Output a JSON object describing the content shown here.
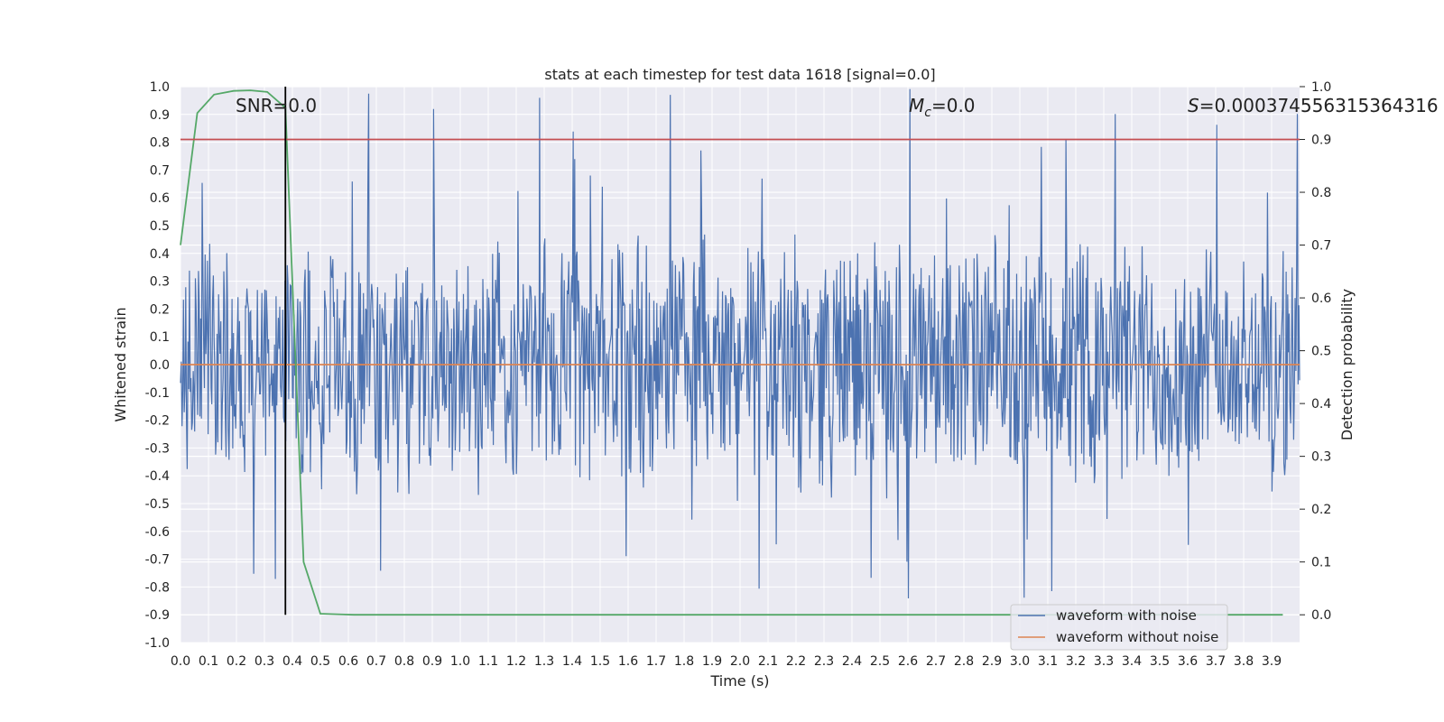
{
  "chart_data": {
    "type": "line",
    "title": "stats at each timestep for test data 1618 [signal=0.0]",
    "xlabel": "Time (s)",
    "ylabel": "Whitened strain",
    "y2label": "Detection probability",
    "xlim": [
      0.0,
      4.0
    ],
    "ylim": [
      -1.0,
      1.0
    ],
    "y2lim": [
      -0.05,
      1.0
    ],
    "x_ticks": [
      "0.0",
      "0.1",
      "0.2",
      "0.3",
      "0.4",
      "0.5",
      "0.6",
      "0.7",
      "0.8",
      "0.9",
      "1.0",
      "1.1",
      "1.2",
      "1.3",
      "1.4",
      "1.5",
      "1.6",
      "1.7",
      "1.8",
      "1.9",
      "2.0",
      "2.1",
      "2.2",
      "2.3",
      "2.4",
      "2.5",
      "2.6",
      "2.7",
      "2.8",
      "2.9",
      "3.0",
      "3.1",
      "3.2",
      "3.3",
      "3.4",
      "3.5",
      "3.6",
      "3.7",
      "3.8",
      "3.9"
    ],
    "y_ticks": [
      "1.0",
      "0.9",
      "0.8",
      "0.7",
      "0.6",
      "0.5",
      "0.4",
      "0.3",
      "0.2",
      "0.1",
      "0.0",
      "-0.1",
      "-0.2",
      "-0.3",
      "-0.4",
      "-0.5",
      "-0.6",
      "-0.7",
      "-0.8",
      "-0.9",
      "-1.0"
    ],
    "y2_ticks": [
      "1.0",
      "0.9",
      "0.8",
      "0.7",
      "0.6",
      "0.5",
      "0.4",
      "0.3",
      "0.2",
      "0.1",
      "0.0"
    ],
    "grid": true,
    "legend_position": "bottom-right",
    "annotations": {
      "snr": "SNR=0.0",
      "mc_symbol": "M",
      "mc_sub": "c",
      "mc_value": "=0.0",
      "s_symbol": "S",
      "s_value": "=0.00037455631536431​6"
    },
    "series": [
      {
        "name": "waveform with noise",
        "axis": "left",
        "color": "#4c72b0",
        "noise_envelope": {
          "typical_abs_max": 0.5,
          "peak_max": 1.0,
          "peak_min": -0.9
        }
      },
      {
        "name": "waveform without noise",
        "axis": "left",
        "color": "#dd8452",
        "x": [
          0.0,
          4.0
        ],
        "y": [
          0.0,
          0.0
        ]
      },
      {
        "axis": "right",
        "color": "#55a868",
        "x": [
          0.0,
          0.06,
          0.12,
          0.19,
          0.25,
          0.31,
          0.375,
          0.44,
          0.5,
          0.56,
          0.62,
          1.0,
          2.0,
          3.0,
          3.94
        ],
        "y": [
          0.7,
          0.95,
          0.985,
          0.992,
          0.993,
          0.99,
          0.96,
          0.1,
          0.002,
          0.001,
          0.0,
          0.0,
          0.0,
          0.0,
          0.0
        ]
      },
      {
        "axis": "right",
        "color": "#c44e52",
        "type": "hline",
        "y": 0.9
      }
    ],
    "vline": {
      "x": 0.375,
      "color": "#000000"
    }
  }
}
